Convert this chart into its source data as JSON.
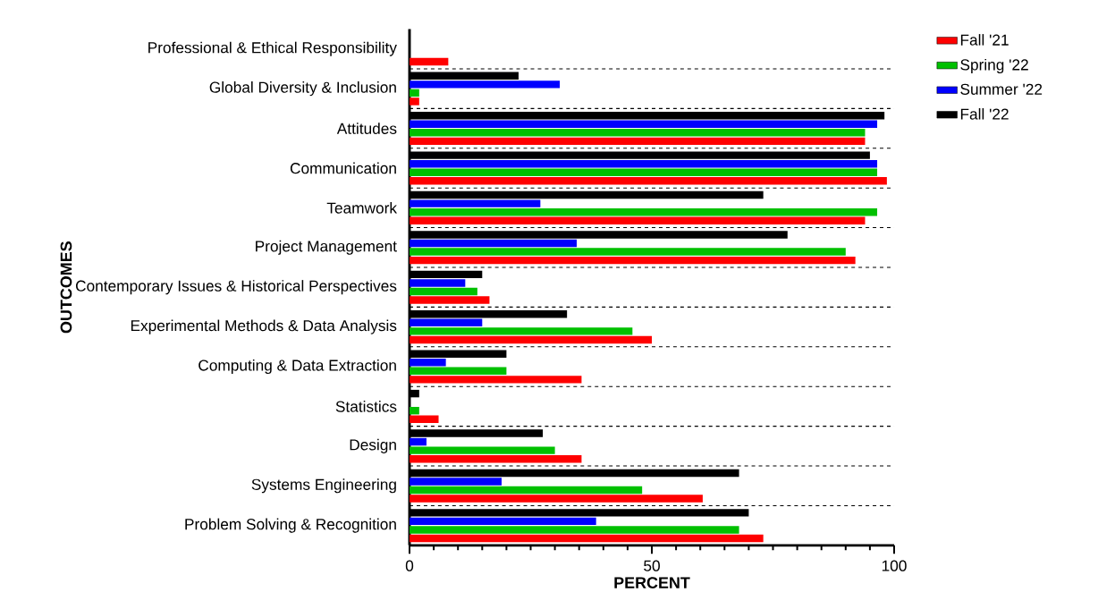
{
  "chart_data": {
    "type": "bar",
    "orientation": "horizontal",
    "xlabel": "PERCENT",
    "ylabel": "OUTCOMES",
    "categories": [
      "Professional & Ethical Responsibility",
      "Global Diversity & Inclusion",
      "Attitudes",
      "Communication",
      "Teamwork",
      "Project Management",
      "Contemporary Issues & Historical Perspectives",
      "Experimental Methods & Data Analysis",
      "Computing & Data Extraction",
      "Statistics",
      "Design",
      "Systems Engineering",
      "Problem Solving & Recognition"
    ],
    "series": [
      {
        "name": "Fall '21",
        "color": "#ff0000",
        "values": [
          8,
          2,
          94,
          98.5,
          94,
          92,
          16.5,
          50,
          35.5,
          6,
          35.5,
          60.5,
          73
        ]
      },
      {
        "name": "Spring '22",
        "color": "#00c000",
        "values": [
          null,
          2,
          94,
          96.5,
          96.5,
          90,
          14,
          46,
          20,
          2,
          30,
          48,
          68
        ]
      },
      {
        "name": "Summer '22",
        "color": "#0000ff",
        "values": [
          null,
          31,
          96.5,
          96.5,
          27,
          34.5,
          11.5,
          15,
          7.5,
          null,
          3.5,
          19,
          38.5
        ]
      },
      {
        "name": "Fall '22",
        "color": "#000000",
        "values": [
          null,
          22.5,
          98,
          95,
          73,
          78,
          15,
          32.5,
          20,
          2,
          27.5,
          68,
          70
        ]
      }
    ],
    "xlim": [
      0,
      100
    ],
    "xticks": [
      0,
      50,
      100
    ],
    "grid": "y",
    "legend": "top right"
  }
}
